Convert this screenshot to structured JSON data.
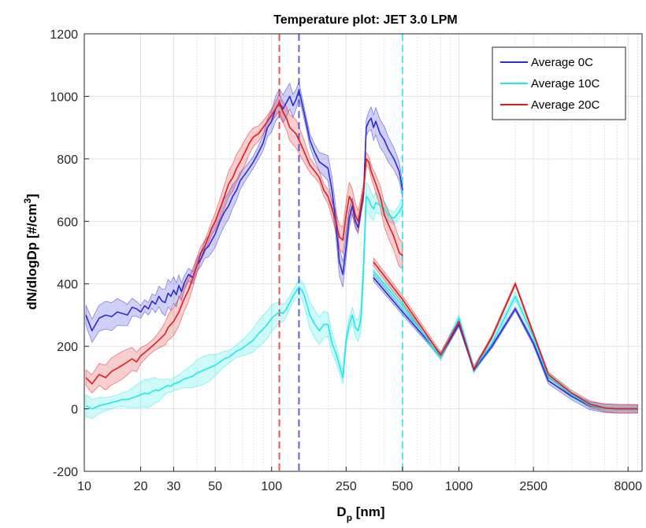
{
  "chart_data": {
    "type": "line",
    "title": "Temperature plot: JET 3.0 LPM",
    "xlabel_main": "D",
    "xlabel_sub": "p",
    "xlabel_unit": " [nm]",
    "ylabel_main": "dN/dlogDp [#/cm",
    "ylabel_sup": "3",
    "ylabel_end": "]",
    "x_scale": "log",
    "xlim": [
      10,
      9500
    ],
    "ylim": [
      -200,
      1200
    ],
    "x_ticks": [
      10,
      20,
      30,
      50,
      100,
      250,
      500,
      1000,
      2500,
      8000
    ],
    "x_tick_labels": [
      "10",
      "20",
      "30",
      "50",
      "100",
      "250",
      "500",
      "1000",
      "2500",
      "8000"
    ],
    "y_ticks": [
      -200,
      0,
      200,
      400,
      600,
      800,
      1000,
      1200
    ],
    "y_tick_labels": [
      "-200",
      "0",
      "200",
      "400",
      "600",
      "800",
      "1000",
      "1200"
    ],
    "grid": true,
    "legend_position": "top-right",
    "colors": {
      "avg0": "#2b2bd6",
      "avg10": "#1fe8e8",
      "avg20": "#e01c1c"
    },
    "vertical_lines": [
      {
        "x": 110,
        "series": "Average 20C"
      },
      {
        "x": 140,
        "series": "Average 0C"
      },
      {
        "x": 500,
        "series": "Average 10C"
      }
    ],
    "series": [
      {
        "name": "Average 0C",
        "smps": [
          [
            10.2,
            300
          ],
          [
            11,
            250
          ],
          [
            12,
            290
          ],
          [
            13,
            300
          ],
          [
            14,
            295
          ],
          [
            15,
            310
          ],
          [
            16,
            305
          ],
          [
            17,
            300
          ],
          [
            18,
            325
          ],
          [
            19,
            320
          ],
          [
            20,
            310
          ],
          [
            21,
            330
          ],
          [
            22,
            320
          ],
          [
            23,
            345
          ],
          [
            24,
            335
          ],
          [
            25,
            360
          ],
          [
            26,
            345
          ],
          [
            27,
            340
          ],
          [
            28,
            370
          ],
          [
            29,
            360
          ],
          [
            30,
            380
          ],
          [
            31,
            365
          ],
          [
            32,
            395
          ],
          [
            33,
            375
          ],
          [
            34,
            400
          ],
          [
            36,
            430
          ],
          [
            38,
            420
          ],
          [
            40,
            460
          ],
          [
            42,
            480
          ],
          [
            44,
            510
          ],
          [
            46,
            520
          ],
          [
            48,
            540
          ],
          [
            50,
            560
          ],
          [
            53,
            600
          ],
          [
            56,
            630
          ],
          [
            59,
            650
          ],
          [
            62,
            680
          ],
          [
            65,
            700
          ],
          [
            68,
            730
          ],
          [
            72,
            750
          ],
          [
            76,
            770
          ],
          [
            80,
            790
          ],
          [
            85,
            820
          ],
          [
            90,
            850
          ],
          [
            95,
            900
          ],
          [
            100,
            920
          ],
          [
            105,
            960
          ],
          [
            110,
            980
          ],
          [
            115,
            960
          ],
          [
            120,
            980
          ],
          [
            125,
            1000
          ],
          [
            130,
            970
          ],
          [
            135,
            990
          ],
          [
            140,
            1020
          ],
          [
            145,
            980
          ],
          [
            150,
            940
          ],
          [
            155,
            900
          ],
          [
            160,
            860
          ],
          [
            170,
            820
          ],
          [
            180,
            790
          ],
          [
            190,
            780
          ],
          [
            200,
            770
          ],
          [
            210,
            700
          ],
          [
            220,
            600
          ],
          [
            230,
            470
          ],
          [
            240,
            430
          ],
          [
            250,
            520
          ],
          [
            260,
            610
          ],
          [
            270,
            650
          ],
          [
            280,
            600
          ],
          [
            290,
            580
          ],
          [
            300,
            640
          ],
          [
            310,
            690
          ],
          [
            320,
            900
          ],
          [
            330,
            920
          ],
          [
            340,
            930
          ],
          [
            350,
            900
          ],
          [
            360,
            920
          ],
          [
            380,
            880
          ],
          [
            400,
            860
          ],
          [
            420,
            830
          ],
          [
            450,
            800
          ],
          [
            480,
            760
          ],
          [
            500,
            700
          ]
        ],
        "aps": [
          [
            350,
            420
          ],
          [
            500,
            310
          ],
          [
            800,
            170
          ],
          [
            1000,
            270
          ],
          [
            1200,
            125
          ],
          [
            1500,
            200
          ],
          [
            2000,
            320
          ],
          [
            2500,
            210
          ],
          [
            3000,
            90
          ],
          [
            4000,
            40
          ],
          [
            5000,
            10
          ],
          [
            6000,
            2
          ],
          [
            7000,
            0
          ],
          [
            8000,
            0
          ],
          [
            9000,
            0
          ]
        ]
      },
      {
        "name": "Average 10C",
        "smps": [
          [
            10.2,
            10
          ],
          [
            11,
            0
          ],
          [
            12,
            10
          ],
          [
            13,
            15
          ],
          [
            14,
            20
          ],
          [
            15,
            25
          ],
          [
            16,
            30
          ],
          [
            17,
            30
          ],
          [
            18,
            35
          ],
          [
            19,
            40
          ],
          [
            20,
            45
          ],
          [
            21,
            50
          ],
          [
            22,
            48
          ],
          [
            23,
            55
          ],
          [
            24,
            60
          ],
          [
            25,
            58
          ],
          [
            26,
            65
          ],
          [
            27,
            70
          ],
          [
            28,
            75
          ],
          [
            29,
            72
          ],
          [
            30,
            80
          ],
          [
            32,
            85
          ],
          [
            34,
            95
          ],
          [
            36,
            100
          ],
          [
            38,
            105
          ],
          [
            40,
            115
          ],
          [
            42,
            120
          ],
          [
            44,
            125
          ],
          [
            46,
            130
          ],
          [
            48,
            135
          ],
          [
            50,
            140
          ],
          [
            53,
            150
          ],
          [
            56,
            160
          ],
          [
            59,
            165
          ],
          [
            62,
            175
          ],
          [
            65,
            185
          ],
          [
            68,
            190
          ],
          [
            72,
            200
          ],
          [
            76,
            210
          ],
          [
            80,
            220
          ],
          [
            85,
            240
          ],
          [
            90,
            255
          ],
          [
            95,
            270
          ],
          [
            100,
            290
          ],
          [
            105,
            300
          ],
          [
            110,
            310
          ],
          [
            115,
            305
          ],
          [
            120,
            320
          ],
          [
            125,
            340
          ],
          [
            130,
            360
          ],
          [
            135,
            375
          ],
          [
            140,
            390
          ],
          [
            145,
            380
          ],
          [
            150,
            360
          ],
          [
            155,
            330
          ],
          [
            160,
            300
          ],
          [
            170,
            270
          ],
          [
            180,
            250
          ],
          [
            190,
            270
          ],
          [
            200,
            270
          ],
          [
            210,
            210
          ],
          [
            220,
            180
          ],
          [
            230,
            140
          ],
          [
            240,
            100
          ],
          [
            250,
            220
          ],
          [
            260,
            270
          ],
          [
            270,
            300
          ],
          [
            280,
            260
          ],
          [
            290,
            250
          ],
          [
            300,
            290
          ],
          [
            310,
            460
          ],
          [
            320,
            680
          ],
          [
            330,
            670
          ],
          [
            340,
            650
          ],
          [
            350,
            640
          ],
          [
            360,
            660
          ],
          [
            380,
            650
          ],
          [
            400,
            640
          ],
          [
            420,
            620
          ],
          [
            450,
            610
          ],
          [
            480,
            630
          ],
          [
            500,
            650
          ]
        ],
        "aps": [
          [
            350,
            440
          ],
          [
            500,
            330
          ],
          [
            800,
            165
          ],
          [
            1000,
            290
          ],
          [
            1200,
            128
          ],
          [
            1500,
            210
          ],
          [
            2000,
            360
          ],
          [
            2500,
            230
          ],
          [
            3000,
            105
          ],
          [
            4000,
            45
          ],
          [
            5000,
            12
          ],
          [
            6000,
            2
          ],
          [
            7000,
            0
          ],
          [
            8000,
            0
          ],
          [
            9000,
            0
          ]
        ]
      },
      {
        "name": "Average 20C",
        "smps": [
          [
            10.2,
            100
          ],
          [
            11,
            80
          ],
          [
            12,
            110
          ],
          [
            13,
            100
          ],
          [
            14,
            120
          ],
          [
            15,
            130
          ],
          [
            16,
            140
          ],
          [
            17,
            150
          ],
          [
            18,
            160
          ],
          [
            19,
            150
          ],
          [
            20,
            170
          ],
          [
            21,
            180
          ],
          [
            22,
            190
          ],
          [
            23,
            200
          ],
          [
            24,
            210
          ],
          [
            25,
            220
          ],
          [
            26,
            230
          ],
          [
            27,
            240
          ],
          [
            28,
            260
          ],
          [
            29,
            270
          ],
          [
            30,
            280
          ],
          [
            32,
            310
          ],
          [
            34,
            350
          ],
          [
            36,
            380
          ],
          [
            38,
            420
          ],
          [
            40,
            460
          ],
          [
            42,
            500
          ],
          [
            44,
            520
          ],
          [
            46,
            550
          ],
          [
            48,
            580
          ],
          [
            50,
            600
          ],
          [
            53,
            640
          ],
          [
            56,
            680
          ],
          [
            59,
            720
          ],
          [
            62,
            740
          ],
          [
            65,
            770
          ],
          [
            68,
            790
          ],
          [
            72,
            820
          ],
          [
            76,
            850
          ],
          [
            80,
            870
          ],
          [
            85,
            880
          ],
          [
            90,
            900
          ],
          [
            95,
            920
          ],
          [
            100,
            940
          ],
          [
            105,
            960
          ],
          [
            110,
            980
          ],
          [
            115,
            950
          ],
          [
            120,
            930
          ],
          [
            125,
            900
          ],
          [
            130,
            890
          ],
          [
            135,
            880
          ],
          [
            140,
            860
          ],
          [
            145,
            840
          ],
          [
            150,
            820
          ],
          [
            155,
            800
          ],
          [
            160,
            780
          ],
          [
            170,
            760
          ],
          [
            180,
            740
          ],
          [
            190,
            700
          ],
          [
            200,
            680
          ],
          [
            210,
            640
          ],
          [
            220,
            600
          ],
          [
            230,
            550
          ],
          [
            240,
            540
          ],
          [
            250,
            620
          ],
          [
            260,
            680
          ],
          [
            270,
            660
          ],
          [
            280,
            620
          ],
          [
            290,
            600
          ],
          [
            300,
            650
          ],
          [
            310,
            700
          ],
          [
            320,
            800
          ],
          [
            330,
            790
          ],
          [
            340,
            760
          ],
          [
            350,
            740
          ],
          [
            360,
            720
          ],
          [
            380,
            680
          ],
          [
            400,
            620
          ],
          [
            420,
            590
          ],
          [
            450,
            550
          ],
          [
            480,
            500
          ],
          [
            500,
            490
          ]
        ],
        "aps": [
          [
            350,
            470
          ],
          [
            500,
            350
          ],
          [
            800,
            172
          ],
          [
            1000,
            280
          ],
          [
            1200,
            127
          ],
          [
            1500,
            230
          ],
          [
            2000,
            400
          ],
          [
            2500,
            240
          ],
          [
            3000,
            110
          ],
          [
            4000,
            50
          ],
          [
            5000,
            15
          ],
          [
            6000,
            3
          ],
          [
            7000,
            0
          ],
          [
            8000,
            0
          ],
          [
            9000,
            0
          ]
        ]
      }
    ]
  },
  "legend": {
    "items": [
      "Average 0C",
      "Average 10C",
      "Average 20C"
    ]
  }
}
